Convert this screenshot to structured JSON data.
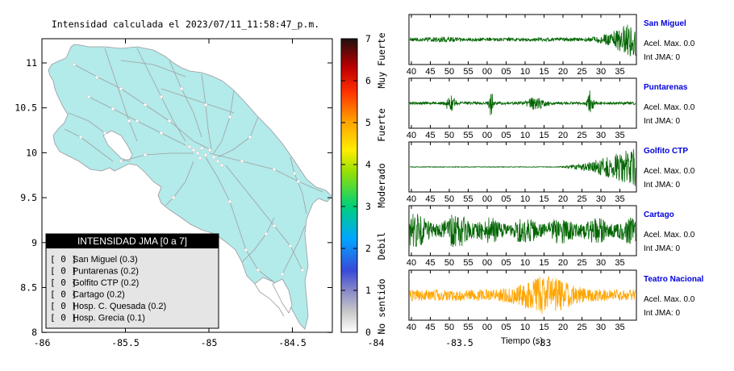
{
  "map_panel": {
    "title": "Intensidad calculada el 2023/07/11_11:58:47_p.m.",
    "x_ticks": [
      "-86",
      "-85.5",
      "-85",
      "-84.5",
      "-84",
      "-83.5",
      "-83"
    ],
    "y_ticks": [
      "11",
      "10.5",
      "10",
      "9.5",
      "9",
      "8.5",
      "8"
    ],
    "land_color": "#b3eaea",
    "legend": {
      "title": "INTENSIDAD JMA [0 a 7]",
      "items": [
        {
          "level": "[ 0 ]",
          "name": "San Miguel (0.3)"
        },
        {
          "level": "[ 0 ]",
          "name": "Puntarenas (0.2)"
        },
        {
          "level": "[ 0 ]",
          "name": "Golfito CTP (0.2)"
        },
        {
          "level": "[ 0 ]",
          "name": "Cartago (0.2)"
        },
        {
          "level": "[ 0 ]",
          "name": "Hosp. C. Quesada (0.2)"
        },
        {
          "level": "[ 0 ]",
          "name": "Hosp. Grecia (0.1)"
        }
      ]
    }
  },
  "colorbar": {
    "ticks": [
      "0",
      "1",
      "2",
      "3",
      "4",
      "5",
      "6",
      "7"
    ],
    "labels": [
      "No sentido",
      "Debil",
      "Moderado",
      "Fuerte",
      "Muy Fuerte"
    ],
    "range": [
      0,
      7
    ]
  },
  "chart_data": {
    "type": "line",
    "x_tick_labels": [
      "40",
      "45",
      "50",
      "55",
      "00",
      "05",
      "10",
      "15",
      "20",
      "25",
      "30",
      "35"
    ],
    "xlabel": "Tiempo (s)",
    "series": [
      {
        "name": "San Miguel",
        "accel_label": "Acel. Max. 0.0",
        "jma_label": "Int JMA: 0",
        "color": "#006400",
        "pattern": "rising"
      },
      {
        "name": "Puntarenas",
        "accel_label": "Acel. Max. 0.0",
        "jma_label": "Int JMA: 0",
        "color": "#006400",
        "pattern": "bursts"
      },
      {
        "name": "Golfito CTP",
        "accel_label": "Acel. Max. 0.0",
        "jma_label": "Int JMA: 0",
        "color": "#006400",
        "pattern": "late"
      },
      {
        "name": "Cartago",
        "accel_label": "Acel. Max. 0.0",
        "jma_label": "Int JMA: 0",
        "color": "#006400",
        "pattern": "continuous"
      },
      {
        "name": "Teatro Nacional",
        "accel_label": "Acel. Max. 0.0",
        "jma_label": "Int JMA: 0",
        "color": "#ffa500",
        "pattern": "center"
      }
    ]
  }
}
